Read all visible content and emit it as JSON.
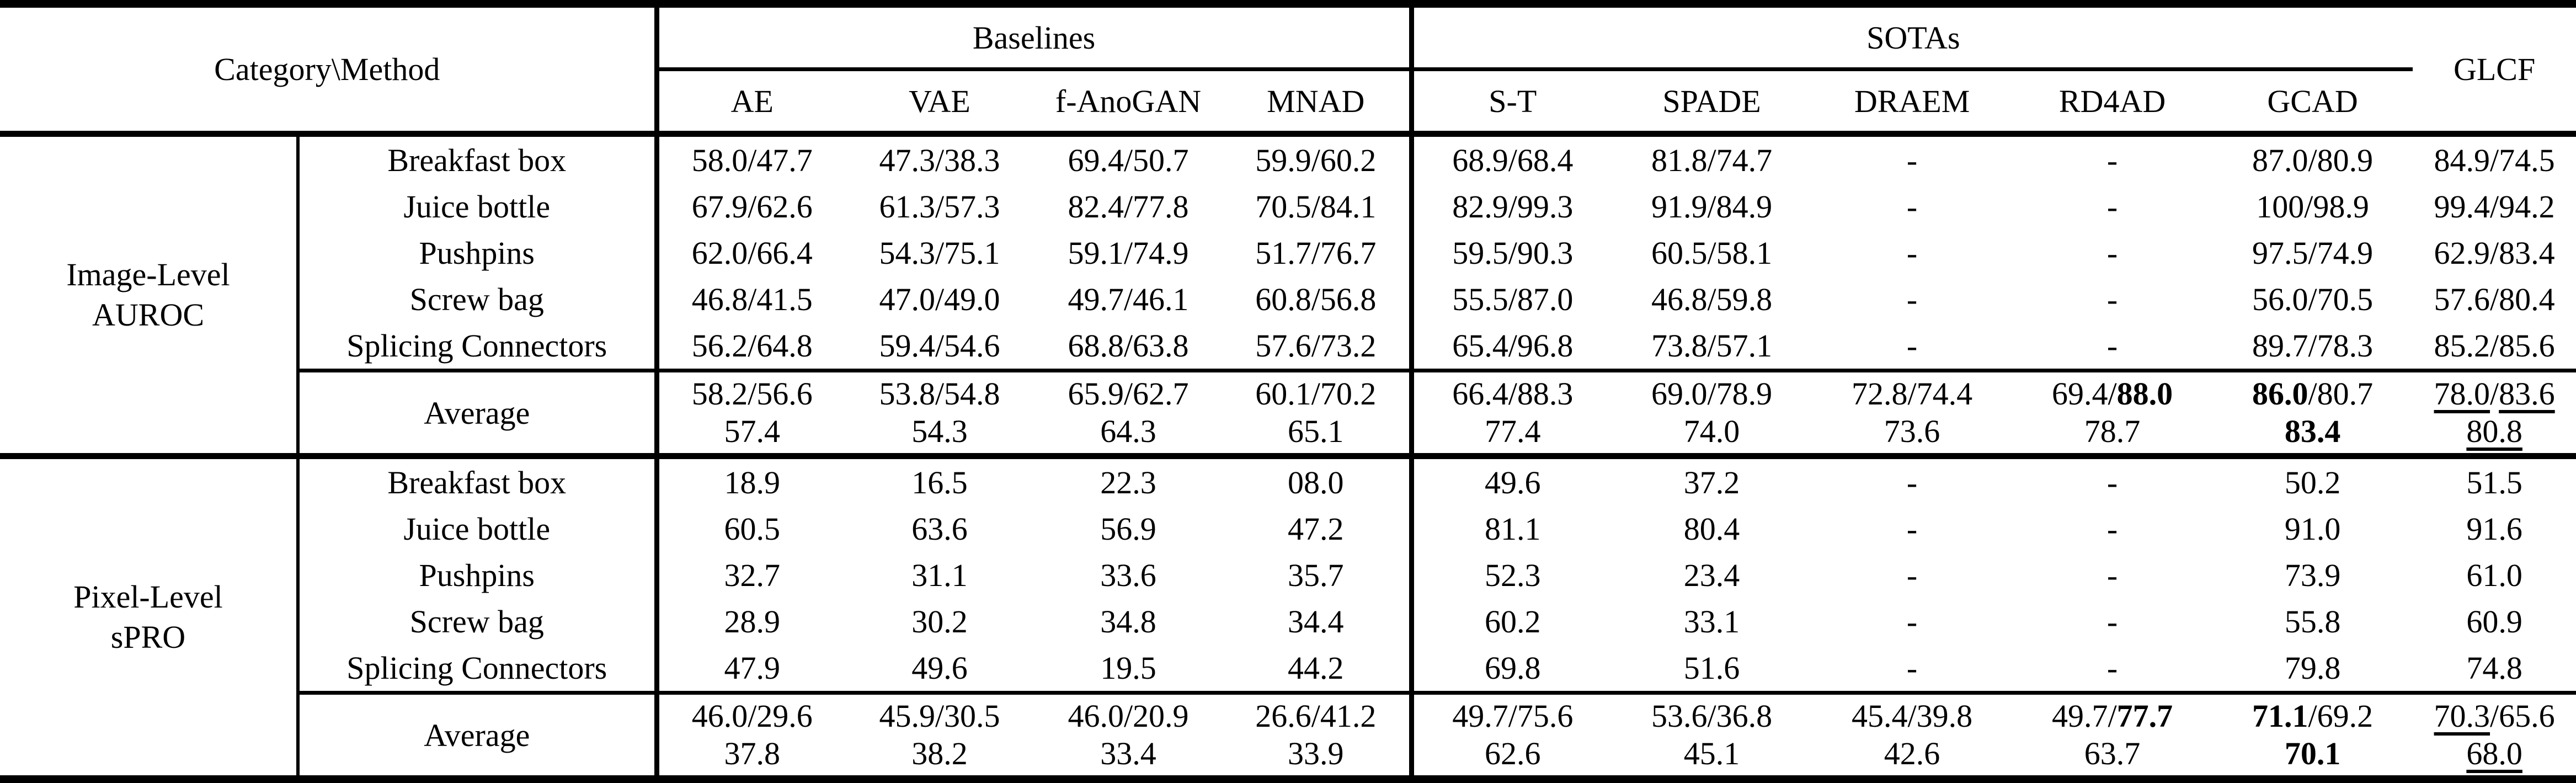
{
  "table": {
    "corner_label": "Category\\Method",
    "groups": [
      {
        "label": "Baselines",
        "methods": [
          "AE",
          "VAE",
          "f-AnoGAN",
          "MNAD"
        ]
      },
      {
        "label": "SOTAs",
        "methods": [
          "S-T",
          "SPADE",
          "DRAEM",
          "RD4AD",
          "GCAD"
        ]
      }
    ],
    "last_column": "GLCF",
    "sections": [
      {
        "category_lines": [
          "Image-Level",
          "AUROC"
        ],
        "rows": [
          {
            "label": "Breakfast box",
            "cells": [
              "58.0/47.7",
              "47.3/38.3",
              "69.4/50.7",
              "59.9/60.2",
              "68.9/68.4",
              "81.8/74.7",
              "-",
              "-",
              "87.0/80.9",
              "84.9/74.5"
            ]
          },
          {
            "label": "Juice bottle",
            "cells": [
              "67.9/62.6",
              "61.3/57.3",
              "82.4/77.8",
              "70.5/84.1",
              "82.9/99.3",
              "91.9/84.9",
              "-",
              "-",
              "100/98.9",
              "99.4/94.2"
            ]
          },
          {
            "label": "Pushpins",
            "cells": [
              "62.0/66.4",
              "54.3/75.1",
              "59.1/74.9",
              "51.7/76.7",
              "59.5/90.3",
              "60.5/58.1",
              "-",
              "-",
              "97.5/74.9",
              "62.9/83.4"
            ]
          },
          {
            "label": "Screw bag",
            "cells": [
              "46.8/41.5",
              "47.0/49.0",
              "49.7/46.1",
              "60.8/56.8",
              "55.5/87.0",
              "46.8/59.8",
              "-",
              "-",
              "56.0/70.5",
              "57.6/80.4"
            ]
          },
          {
            "label": "Splicing Connectors",
            "cells": [
              "56.2/64.8",
              "59.4/54.6",
              "68.8/63.8",
              "57.6/73.2",
              "65.4/96.8",
              "73.8/57.1",
              "-",
              "-",
              "89.7/78.3",
              "85.2/85.6"
            ]
          }
        ],
        "average": {
          "label": "Average",
          "cells": [
            {
              "line1": [
                [
                  "58.2/56.6",
                  ""
                ]
              ],
              "line2": [
                [
                  "57.4",
                  ""
                ]
              ]
            },
            {
              "line1": [
                [
                  "53.8/54.8",
                  ""
                ]
              ],
              "line2": [
                [
                  "54.3",
                  ""
                ]
              ]
            },
            {
              "line1": [
                [
                  "65.9/62.7",
                  ""
                ]
              ],
              "line2": [
                [
                  "64.3",
                  ""
                ]
              ]
            },
            {
              "line1": [
                [
                  "60.1/70.2",
                  ""
                ]
              ],
              "line2": [
                [
                  "65.1",
                  ""
                ]
              ]
            },
            {
              "line1": [
                [
                  "66.4/88.3",
                  ""
                ]
              ],
              "line2": [
                [
                  "77.4",
                  ""
                ]
              ]
            },
            {
              "line1": [
                [
                  "69.0/78.9",
                  ""
                ]
              ],
              "line2": [
                [
                  "74.0",
                  ""
                ]
              ]
            },
            {
              "line1": [
                [
                  "72.8/74.4",
                  ""
                ]
              ],
              "line2": [
                [
                  "73.6",
                  ""
                ]
              ]
            },
            {
              "line1": [
                [
                  "69.4/",
                  ""
                ],
                [
                  "88.0",
                  "b"
                ]
              ],
              "line2": [
                [
                  "78.7",
                  ""
                ]
              ]
            },
            {
              "line1": [
                [
                  "86.0",
                  "b"
                ],
                [
                  "/80.7",
                  ""
                ]
              ],
              "line2": [
                [
                  "83.4",
                  "b"
                ]
              ]
            },
            {
              "line1": [
                [
                  "78.0",
                  "u"
                ],
                [
                  "/",
                  ""
                ],
                [
                  "83.6",
                  "u"
                ]
              ],
              "line2": [
                [
                  "80.8",
                  "u"
                ]
              ]
            }
          ]
        }
      },
      {
        "category_lines": [
          "Pixel-Level",
          "sPRO"
        ],
        "rows": [
          {
            "label": "Breakfast box",
            "cells": [
              "18.9",
              "16.5",
              "22.3",
              "08.0",
              "49.6",
              "37.2",
              "-",
              "-",
              "50.2",
              "51.5"
            ]
          },
          {
            "label": "Juice bottle",
            "cells": [
              "60.5",
              "63.6",
              "56.9",
              "47.2",
              "81.1",
              "80.4",
              "-",
              "-",
              "91.0",
              "91.6"
            ]
          },
          {
            "label": "Pushpins",
            "cells": [
              "32.7",
              "31.1",
              "33.6",
              "35.7",
              "52.3",
              "23.4",
              "-",
              "-",
              "73.9",
              "61.0"
            ]
          },
          {
            "label": "Screw bag",
            "cells": [
              "28.9",
              "30.2",
              "34.8",
              "34.4",
              "60.2",
              "33.1",
              "-",
              "-",
              "55.8",
              "60.9"
            ]
          },
          {
            "label": "Splicing Connectors",
            "cells": [
              "47.9",
              "49.6",
              "19.5",
              "44.2",
              "69.8",
              "51.6",
              "-",
              "-",
              "79.8",
              "74.8"
            ]
          }
        ],
        "average": {
          "label": "Average",
          "cells": [
            {
              "line1": [
                [
                  "46.0/29.6",
                  ""
                ]
              ],
              "line2": [
                [
                  "37.8",
                  ""
                ]
              ]
            },
            {
              "line1": [
                [
                  "45.9/30.5",
                  ""
                ]
              ],
              "line2": [
                [
                  "38.2",
                  ""
                ]
              ]
            },
            {
              "line1": [
                [
                  "46.0/20.9",
                  ""
                ]
              ],
              "line2": [
                [
                  "33.4",
                  ""
                ]
              ]
            },
            {
              "line1": [
                [
                  "26.6/41.2",
                  ""
                ]
              ],
              "line2": [
                [
                  "33.9",
                  ""
                ]
              ]
            },
            {
              "line1": [
                [
                  "49.7/75.6",
                  ""
                ]
              ],
              "line2": [
                [
                  "62.6",
                  ""
                ]
              ]
            },
            {
              "line1": [
                [
                  "53.6/36.8",
                  ""
                ]
              ],
              "line2": [
                [
                  "45.1",
                  ""
                ]
              ]
            },
            {
              "line1": [
                [
                  "45.4/39.8",
                  ""
                ]
              ],
              "line2": [
                [
                  "42.6",
                  ""
                ]
              ]
            },
            {
              "line1": [
                [
                  "49.7/",
                  ""
                ],
                [
                  "77.7",
                  "b"
                ]
              ],
              "line2": [
                [
                  "63.7",
                  ""
                ]
              ]
            },
            {
              "line1": [
                [
                  "71.1",
                  "b"
                ],
                [
                  "/69.2",
                  ""
                ]
              ],
              "line2": [
                [
                  "70.1",
                  "b"
                ]
              ]
            },
            {
              "line1": [
                [
                  "70.3",
                  "u"
                ],
                [
                  "/65.6",
                  ""
                ]
              ],
              "line2": [
                [
                  "68.0",
                  "u"
                ]
              ]
            }
          ]
        }
      }
    ]
  }
}
